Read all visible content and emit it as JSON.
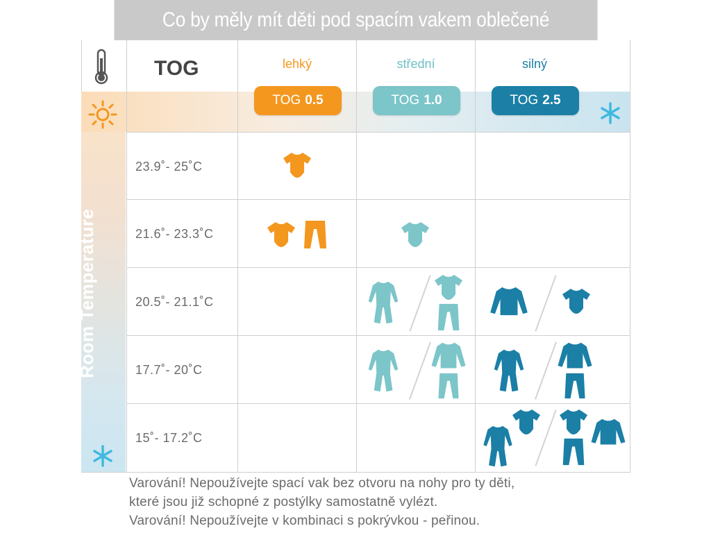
{
  "title": "Co by měly mít děti pod spacím vakem oblečené",
  "tog_label": "TOG",
  "columns": [
    {
      "label": "lehký",
      "tog_prefix": "TOG",
      "tog_value": "0.5",
      "color": "#f3971f"
    },
    {
      "label": "střední",
      "tog_prefix": "TOG",
      "tog_value": "1.0",
      "color": "#7cc5c9"
    },
    {
      "label": "silný",
      "tog_prefix": "TOG",
      "tog_value": "2.5",
      "color": "#1b7fa6"
    }
  ],
  "side_label": "Room Temperature",
  "rows": [
    {
      "temp": "23.9˚- 25˚C"
    },
    {
      "temp": "21.6˚- 23.3˚C"
    },
    {
      "temp": "20.5˚- 21.1˚C"
    },
    {
      "temp": "17.7˚- 20˚C"
    },
    {
      "temp": "15˚- 17.2˚C"
    }
  ],
  "footer": {
    "line1": "Varování! Nepoužívejte spací vak bez otvoru na nohy pro ty děti,",
    "line2": "které jsou již schopné z postýlky samostatně vylézt.",
    "line3": "Varování! Nepoužívejte v kombinaci s pokrývkou - peřinou."
  },
  "icons": [
    "thermometer-icon",
    "sun-icon",
    "snowflake-icon",
    "bodysuit-icon",
    "pants-icon",
    "sleepsuit-icon",
    "jacket-icon"
  ],
  "colors": {
    "orange": "#f3971f",
    "teal": "#7cc5c9",
    "blue": "#1b7fa6",
    "snow": "#3fb8e0",
    "title_bg": "#c9c9c9"
  }
}
